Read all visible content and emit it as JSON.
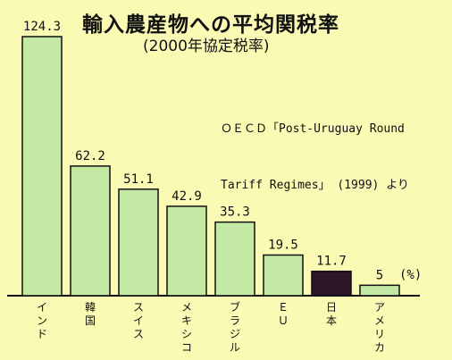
{
  "chart_data": {
    "type": "bar",
    "title": "輸入農産物への平均関税率",
    "subtitle": "(2000年協定税率)",
    "source_lines": [
      "ＯＥＣＤ「Post-Uruguay Round",
      "Tariff Regimes」 (1999) より"
    ],
    "unit": "(%)",
    "categories": [
      "インド",
      "韓国",
      "スイス",
      "メキシコ",
      "ブラジル",
      "ＥＵ",
      "日本",
      "アメリカ"
    ],
    "values": [
      124.3,
      62.2,
      51.1,
      42.9,
      35.3,
      19.5,
      11.7,
      5
    ],
    "value_labels": [
      "124.3",
      "62.2",
      "51.1",
      "42.9",
      "35.3",
      "19.5",
      "11.7",
      "5"
    ],
    "highlight": "日本",
    "colors": {
      "bar": "#c3e9a5",
      "highlight_bar": "#2e1528",
      "background": "#fafab4",
      "stroke": "#111111"
    }
  }
}
